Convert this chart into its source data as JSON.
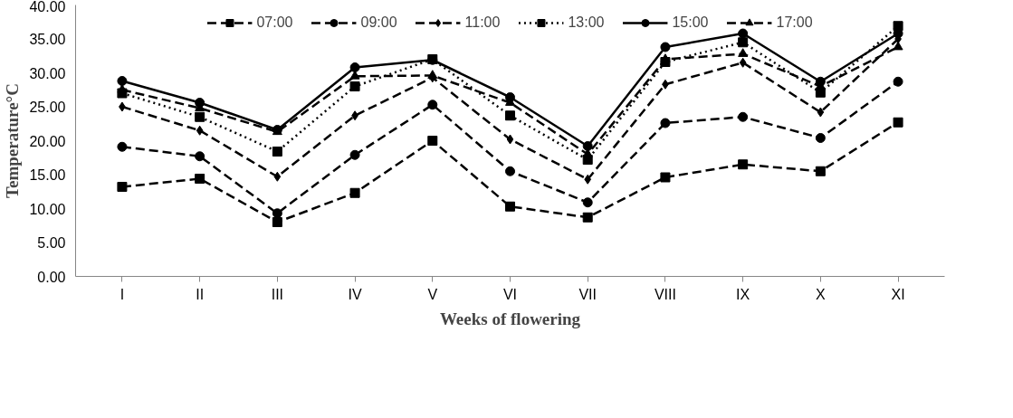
{
  "chart_data": {
    "type": "line",
    "xlabel": "Weeks of flowering",
    "ylabel": "Temperature°C",
    "categories": [
      "I",
      "II",
      "III",
      "IV",
      "V",
      "VI",
      "VII",
      "VIII",
      "IX",
      "X",
      "XI"
    ],
    "ylim": [
      0,
      40
    ],
    "yticks": [
      {
        "value": 0,
        "label": "0.00"
      },
      {
        "value": 5,
        "label": "5.00"
      },
      {
        "value": 10,
        "label": "10.00"
      },
      {
        "value": 15,
        "label": "15.00"
      },
      {
        "value": 20,
        "label": "20.00"
      },
      {
        "value": 25,
        "label": "25.00"
      },
      {
        "value": 30,
        "label": "30.00"
      },
      {
        "value": 35,
        "label": "35.00"
      },
      {
        "value": 40,
        "label": "40.00"
      }
    ],
    "grid": false,
    "legend": "top",
    "series": [
      {
        "name": "07:00",
        "color": "#000000",
        "marker": "square",
        "line_style": "dashed",
        "values": [
          13.2,
          14.4,
          8.0,
          12.3,
          20.0,
          10.3,
          8.7,
          14.6,
          16.5,
          15.5,
          22.7
        ]
      },
      {
        "name": "09:00",
        "color": "#000000",
        "marker": "circle",
        "line_style": "dashed",
        "values": [
          19.1,
          17.7,
          9.3,
          17.9,
          25.3,
          15.5,
          10.9,
          22.6,
          23.5,
          20.4,
          28.7
        ]
      },
      {
        "name": "11:00",
        "color": "#000000",
        "marker": "diamond",
        "line_style": "dashed",
        "values": [
          25.0,
          21.5,
          14.7,
          23.7,
          29.3,
          20.2,
          14.3,
          28.3,
          31.5,
          24.2,
          35.0
        ]
      },
      {
        "name": "13:00",
        "color": "#000000",
        "marker": "square",
        "line_style": "dotted",
        "values": [
          27.0,
          23.5,
          18.4,
          28.0,
          32.0,
          23.7,
          17.2,
          31.6,
          34.5,
          27.1,
          36.9
        ]
      },
      {
        "name": "15:00",
        "color": "#000000",
        "marker": "circle",
        "line_style": "solid",
        "values": [
          28.8,
          25.6,
          21.6,
          30.8,
          31.9,
          26.4,
          19.2,
          33.8,
          35.8,
          28.7,
          35.8
        ]
      },
      {
        "name": "17:00",
        "color": "#000000",
        "marker": "triangle",
        "line_style": "dashed",
        "values": [
          27.5,
          24.8,
          21.3,
          29.5,
          29.6,
          25.6,
          18.0,
          32.0,
          32.8,
          28.0,
          33.8
        ]
      }
    ]
  }
}
